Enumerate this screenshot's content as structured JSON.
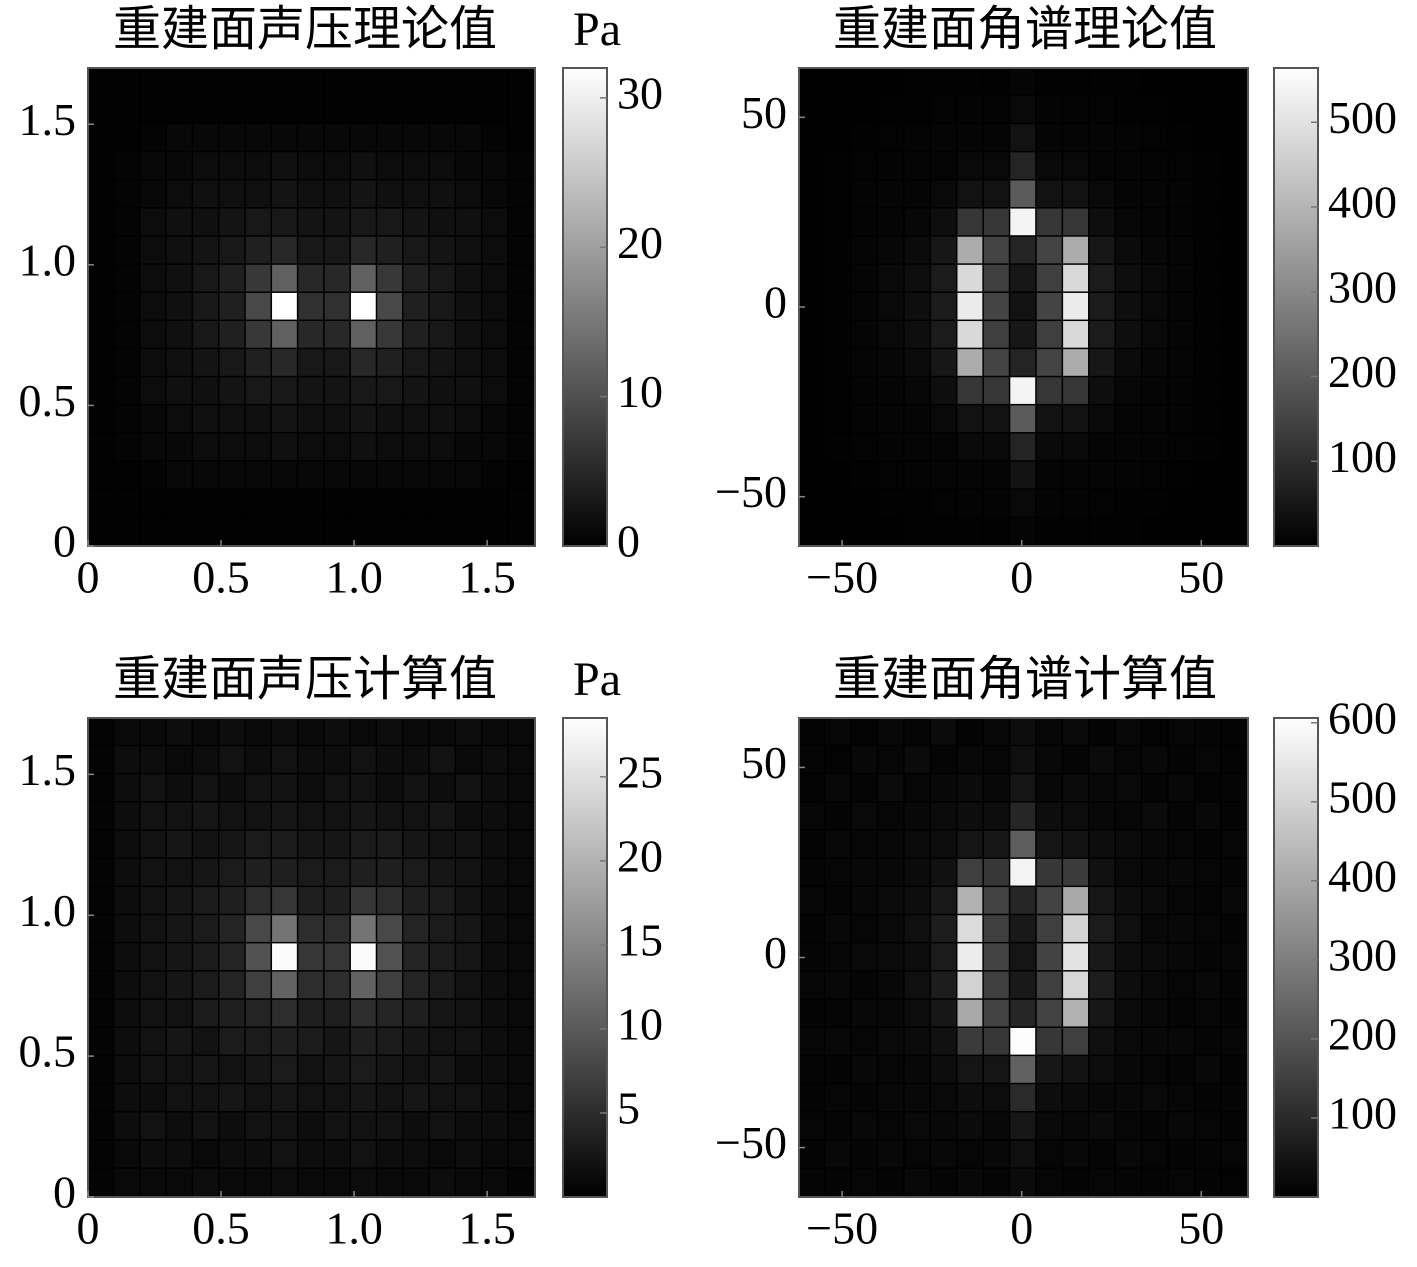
{
  "chart_data": [
    {
      "type": "heatmap",
      "title": "重建面声压理论值",
      "colorbar_label": "Pa",
      "xlim": [
        0,
        1.68
      ],
      "ylim": [
        0,
        1.7
      ],
      "xticks": [
        0,
        0.5,
        {
          "value": 1,
          "label": "1.0"
        },
        1.5
      ],
      "yticks": [
        0,
        0.5,
        {
          "value": 1,
          "label": "1.0"
        },
        1.5
      ],
      "clim": [
        0,
        32
      ],
      "cticks": [
        0,
        10,
        20,
        30
      ],
      "z": [
        [
          0.3,
          0.3,
          0.3,
          0.3,
          0.3,
          0.3,
          0.3,
          0.3,
          0.3,
          0.3,
          0.3,
          0.3,
          0.3,
          0.3,
          0.3,
          0.3,
          0.3
        ],
        [
          0.3,
          0.3,
          0.3,
          0.3,
          0.3,
          0.3,
          0.3,
          0.3,
          0.3,
          0.3,
          0.3,
          0.3,
          0.3,
          0.3,
          0.3,
          0.3,
          0.3
        ],
        [
          0.3,
          0.3,
          0.5,
          1,
          1,
          1,
          1,
          1,
          1,
          1,
          1,
          1,
          1,
          1,
          1,
          0.5,
          0.3
        ],
        [
          0.3,
          0.5,
          1,
          1,
          1.5,
          1.5,
          1.5,
          2,
          1.5,
          1.5,
          2,
          1.5,
          1.5,
          1.5,
          1,
          1,
          0.5
        ],
        [
          0.3,
          0.5,
          1,
          1.5,
          2,
          2,
          2,
          2.5,
          2,
          2,
          2.5,
          2,
          2,
          2,
          1.5,
          1,
          0.5
        ],
        [
          0.3,
          0.5,
          1.5,
          2,
          2,
          2.5,
          3,
          3,
          2.5,
          2.5,
          3,
          3,
          2.5,
          2,
          2,
          1.5,
          0.5
        ],
        [
          0.3,
          0.5,
          1.5,
          2,
          2.5,
          3,
          4,
          5,
          3,
          3,
          5,
          4,
          3,
          2.5,
          2,
          1.5,
          0.5
        ],
        [
          0.3,
          0.5,
          1.5,
          2,
          3,
          4,
          7,
          12,
          5,
          5,
          12,
          7,
          4,
          3,
          2,
          1.5,
          0.5
        ],
        [
          0.3,
          0.5,
          1.5,
          2,
          3,
          4,
          9,
          32,
          6,
          6,
          32,
          9,
          4,
          3,
          2,
          1.5,
          0.5
        ],
        [
          0.3,
          0.5,
          1.5,
          2,
          3,
          4,
          7,
          12,
          5,
          5,
          12,
          7,
          4,
          3,
          2,
          1.5,
          0.5
        ],
        [
          0.3,
          0.5,
          1.5,
          2,
          2.5,
          3,
          4,
          5,
          3,
          3,
          5,
          4,
          3,
          2.5,
          2,
          1.5,
          0.5
        ],
        [
          0.3,
          0.5,
          1.5,
          2,
          2,
          2.5,
          3,
          3,
          2.5,
          2.5,
          3,
          3,
          2.5,
          2,
          2,
          1.5,
          0.5
        ],
        [
          0.3,
          0.5,
          1,
          1.5,
          2,
          2,
          2,
          2.5,
          2,
          2,
          2.5,
          2,
          2,
          2,
          1.5,
          1,
          0.5
        ],
        [
          0.3,
          0.5,
          1,
          1,
          1.5,
          1.5,
          1.5,
          2,
          1.5,
          1.5,
          2,
          1.5,
          1.5,
          1.5,
          1,
          1,
          0.5
        ],
        [
          0.3,
          0.3,
          0.5,
          1,
          1,
          1,
          1,
          1,
          1,
          1,
          1,
          1,
          1,
          1,
          1,
          0.5,
          0.3
        ],
        [
          0.3,
          0.3,
          0.3,
          0.3,
          0.3,
          0.3,
          0.3,
          0.3,
          0.3,
          0.3,
          0.3,
          0.3,
          0.3,
          0.3,
          0.3,
          0.3,
          0.3
        ],
        [
          0.3,
          0.3,
          0.3,
          0.3,
          0.3,
          0.3,
          0.3,
          0.3,
          0.3,
          0.3,
          0.3,
          0.3,
          0.3,
          0.3,
          0.3,
          0.3,
          0.3
        ]
      ]
    },
    {
      "type": "heatmap",
      "title": "重建面角谱理论值",
      "xlim": [
        -62,
        63
      ],
      "ylim": [
        -63,
        63
      ],
      "xticks": [
        {
          "value": -50,
          "label": "−50"
        },
        0,
        50
      ],
      "yticks": [
        {
          "value": -50,
          "label": "−50"
        },
        0,
        50
      ],
      "clim": [
        0,
        564
      ],
      "cticks": [
        100,
        200,
        300,
        400,
        500
      ],
      "z": [
        [
          2,
          2,
          3,
          3,
          4,
          4,
          5,
          5,
          10,
          5,
          5,
          4,
          4,
          3,
          3,
          2,
          2
        ],
        [
          2,
          3,
          3,
          4,
          5,
          6,
          8,
          8,
          20,
          8,
          8,
          6,
          5,
          4,
          3,
          3,
          2
        ],
        [
          3,
          3,
          5,
          6,
          8,
          10,
          12,
          12,
          40,
          12,
          12,
          10,
          8,
          6,
          5,
          3,
          3
        ],
        [
          3,
          4,
          6,
          8,
          10,
          12,
          20,
          20,
          80,
          20,
          20,
          12,
          10,
          8,
          6,
          4,
          3
        ],
        [
          3,
          5,
          8,
          10,
          12,
          20,
          40,
          40,
          200,
          40,
          40,
          20,
          12,
          10,
          8,
          5,
          3
        ],
        [
          3,
          5,
          8,
          10,
          15,
          30,
          120,
          120,
          540,
          120,
          120,
          30,
          15,
          10,
          8,
          5,
          3
        ],
        [
          3,
          5,
          10,
          15,
          25,
          50,
          380,
          150,
          80,
          150,
          380,
          50,
          25,
          15,
          10,
          5,
          3
        ],
        [
          3,
          5,
          10,
          20,
          30,
          60,
          480,
          140,
          50,
          140,
          480,
          60,
          30,
          20,
          10,
          5,
          3
        ],
        [
          3,
          5,
          10,
          20,
          30,
          60,
          520,
          150,
          40,
          150,
          520,
          60,
          30,
          20,
          10,
          5,
          3
        ],
        [
          3,
          5,
          10,
          20,
          30,
          60,
          480,
          140,
          50,
          140,
          480,
          60,
          30,
          20,
          10,
          5,
          3
        ],
        [
          3,
          5,
          10,
          15,
          25,
          50,
          380,
          150,
          80,
          150,
          380,
          50,
          25,
          15,
          10,
          5,
          3
        ],
        [
          3,
          5,
          8,
          10,
          15,
          30,
          120,
          120,
          540,
          120,
          120,
          30,
          15,
          10,
          8,
          5,
          3
        ],
        [
          3,
          5,
          8,
          10,
          12,
          20,
          40,
          40,
          200,
          40,
          40,
          20,
          12,
          10,
          8,
          5,
          3
        ],
        [
          3,
          4,
          6,
          8,
          10,
          12,
          20,
          20,
          80,
          20,
          20,
          12,
          10,
          8,
          6,
          4,
          3
        ],
        [
          3,
          3,
          5,
          6,
          8,
          10,
          12,
          12,
          40,
          12,
          12,
          10,
          8,
          6,
          5,
          3,
          3
        ],
        [
          2,
          3,
          3,
          4,
          5,
          6,
          8,
          8,
          20,
          8,
          8,
          6,
          5,
          4,
          3,
          3,
          2
        ],
        [
          2,
          2,
          3,
          3,
          4,
          4,
          5,
          5,
          10,
          5,
          5,
          4,
          4,
          3,
          3,
          2,
          2
        ]
      ]
    },
    {
      "type": "heatmap",
      "title": "重建面声压计算值",
      "colorbar_label": "Pa",
      "xlim": [
        0,
        1.68
      ],
      "ylim": [
        0,
        1.7
      ],
      "xticks": [
        0,
        0.5,
        {
          "value": 1,
          "label": "1.0"
        },
        1.5
      ],
      "yticks": [
        0,
        0.5,
        {
          "value": 1,
          "label": "1.0"
        },
        1.5
      ],
      "clim": [
        0,
        28.5
      ],
      "cticks": [
        5,
        10,
        15,
        20,
        25
      ],
      "z": [
        [
          0.5,
          1,
          1,
          1.5,
          1,
          1.5,
          1,
          1.5,
          1,
          1.5,
          1,
          1.5,
          1,
          1,
          1.5,
          1,
          1
        ],
        [
          0.5,
          1.5,
          1.5,
          1,
          1.5,
          2,
          1.5,
          2,
          1.5,
          1.5,
          2,
          1.5,
          1.5,
          2,
          1,
          1.5,
          1
        ],
        [
          0.5,
          1.5,
          2,
          1.5,
          2,
          1.5,
          2,
          2,
          1.5,
          2,
          2,
          1.5,
          2,
          1.5,
          2,
          1.5,
          1
        ],
        [
          0.5,
          1.5,
          2,
          2,
          2.5,
          2,
          2,
          2.5,
          2,
          2,
          2.5,
          2,
          2,
          2.5,
          1.5,
          1.5,
          1
        ],
        [
          0.5,
          1.5,
          2,
          2.5,
          2,
          2.5,
          3,
          3,
          2.5,
          2.5,
          3,
          3,
          2.5,
          2,
          2,
          1.5,
          1
        ],
        [
          0.5,
          1.5,
          2,
          2,
          2.5,
          3,
          3.5,
          3.5,
          3,
          3,
          3.5,
          3.5,
          3,
          2.5,
          2,
          1.5,
          1
        ],
        [
          0.5,
          1.5,
          2,
          2.5,
          3,
          3.5,
          5,
          6,
          3.5,
          3.5,
          6,
          5,
          3.5,
          3,
          2,
          1.5,
          1
        ],
        [
          0.5,
          1.5,
          2,
          2.5,
          3,
          4,
          8,
          13,
          5,
          5,
          13,
          8,
          4,
          3,
          2.5,
          1.5,
          1
        ],
        [
          0.5,
          1.5,
          2,
          2.5,
          3,
          4,
          9,
          28,
          6,
          6,
          28,
          9,
          4,
          3,
          2.5,
          1.5,
          1
        ],
        [
          0.5,
          1.5,
          2,
          2.5,
          3,
          4,
          7,
          11,
          5,
          5,
          11,
          7,
          4,
          3,
          2,
          1.5,
          1
        ],
        [
          0.5,
          1.5,
          2,
          2,
          3,
          3.5,
          4,
          5,
          3.5,
          3.5,
          5,
          4,
          3.5,
          2.5,
          2,
          1.5,
          1
        ],
        [
          0.5,
          1.5,
          2,
          2.5,
          2,
          3,
          3,
          3.5,
          3,
          2.5,
          3.5,
          3,
          2.5,
          2,
          2,
          1.5,
          1
        ],
        [
          0.5,
          1.5,
          2,
          2,
          2.5,
          2,
          2.5,
          3,
          2,
          2.5,
          3,
          2.5,
          2,
          2.5,
          1.5,
          1.5,
          1
        ],
        [
          0.5,
          1.5,
          1.5,
          2,
          2,
          2.5,
          2,
          2.5,
          2,
          2,
          2.5,
          2,
          2.5,
          2,
          2,
          1.5,
          1
        ],
        [
          0.5,
          1.5,
          2,
          1.5,
          2,
          1.5,
          2,
          2,
          1.5,
          2,
          2,
          2,
          1.5,
          2,
          1.5,
          1.5,
          1
        ],
        [
          0.5,
          1,
          1.5,
          1.5,
          1,
          1.5,
          1.5,
          2,
          1.5,
          1.5,
          2,
          1.5,
          1.5,
          1,
          1.5,
          1,
          1
        ],
        [
          0.5,
          1,
          1,
          1,
          1.5,
          1,
          1,
          1.5,
          1,
          1,
          1.5,
          1,
          1,
          1.5,
          1,
          1,
          0.5
        ]
      ]
    },
    {
      "type": "heatmap",
      "title": "重建面角谱计算值",
      "xlim": [
        -62,
        63
      ],
      "ylim": [
        -63,
        63
      ],
      "xticks": [
        {
          "value": -50,
          "label": "−50"
        },
        0,
        50
      ],
      "yticks": [
        {
          "value": -50,
          "label": "−50"
        },
        0,
        50
      ],
      "clim": [
        0,
        606
      ],
      "cticks": [
        100,
        200,
        300,
        400,
        500,
        600
      ],
      "z": [
        [
          10,
          15,
          8,
          20,
          12,
          25,
          10,
          18,
          30,
          15,
          22,
          10,
          18,
          8,
          15,
          12,
          10
        ],
        [
          12,
          8,
          20,
          15,
          25,
          12,
          20,
          15,
          35,
          18,
          12,
          25,
          15,
          20,
          10,
          15,
          8
        ],
        [
          8,
          20,
          12,
          25,
          15,
          20,
          25,
          20,
          50,
          20,
          25,
          18,
          22,
          12,
          20,
          8,
          12
        ],
        [
          15,
          10,
          22,
          15,
          20,
          25,
          30,
          30,
          90,
          30,
          28,
          20,
          15,
          25,
          12,
          18,
          10
        ],
        [
          10,
          18,
          15,
          20,
          25,
          30,
          50,
          55,
          220,
          50,
          45,
          30,
          25,
          18,
          15,
          10,
          15
        ],
        [
          12,
          15,
          20,
          18,
          25,
          40,
          150,
          130,
          580,
          130,
          140,
          40,
          22,
          20,
          18,
          15,
          12
        ],
        [
          15,
          12,
          18,
          25,
          30,
          60,
          420,
          160,
          90,
          160,
          400,
          55,
          30,
          25,
          15,
          12,
          18
        ],
        [
          10,
          20,
          15,
          22,
          35,
          70,
          520,
          150,
          60,
          150,
          500,
          65,
          35,
          20,
          18,
          15,
          10
        ],
        [
          12,
          15,
          22,
          25,
          30,
          65,
          560,
          160,
          50,
          160,
          540,
          60,
          30,
          25,
          20,
          12,
          15
        ],
        [
          15,
          18,
          12,
          20,
          35,
          70,
          500,
          150,
          60,
          150,
          510,
          70,
          30,
          22,
          15,
          18,
          12
        ],
        [
          10,
          12,
          20,
          18,
          28,
          55,
          400,
          160,
          90,
          160,
          420,
          55,
          25,
          20,
          12,
          15,
          10
        ],
        [
          15,
          18,
          15,
          22,
          25,
          40,
          140,
          130,
          600,
          130,
          150,
          35,
          22,
          18,
          20,
          12,
          15
        ],
        [
          12,
          10,
          18,
          15,
          20,
          30,
          50,
          50,
          230,
          55,
          45,
          28,
          20,
          15,
          12,
          18,
          10
        ],
        [
          10,
          15,
          12,
          20,
          18,
          22,
          30,
          28,
          100,
          30,
          25,
          20,
          18,
          22,
          15,
          10,
          12
        ],
        [
          15,
          12,
          20,
          15,
          22,
          18,
          25,
          20,
          55,
          22,
          20,
          25,
          15,
          12,
          18,
          15,
          10
        ],
        [
          10,
          18,
          12,
          18,
          15,
          20,
          15,
          18,
          35,
          15,
          20,
          12,
          18,
          15,
          10,
          12,
          15
        ],
        [
          12,
          10,
          15,
          10,
          18,
          12,
          20,
          12,
          25,
          15,
          10,
          15,
          12,
          10,
          15,
          10,
          8
        ]
      ]
    }
  ]
}
